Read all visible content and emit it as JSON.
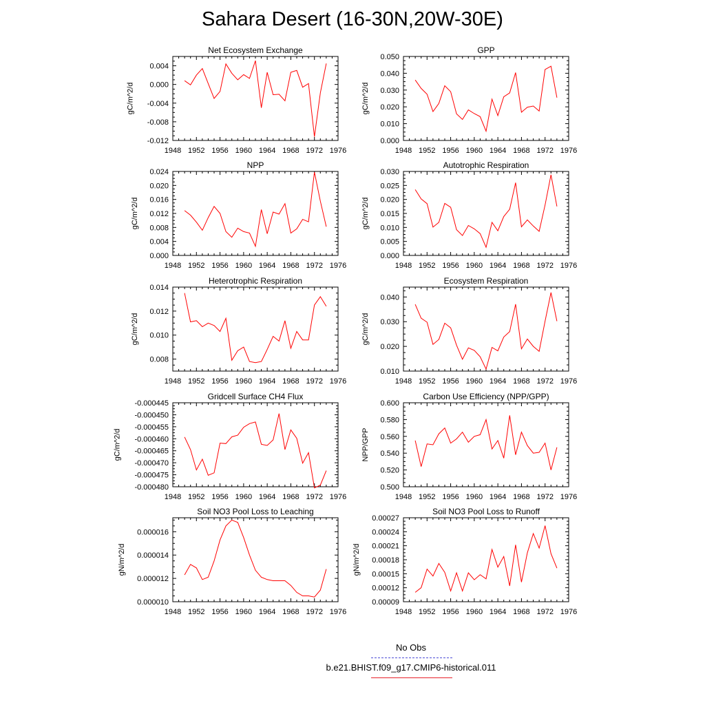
{
  "title": "Sahara Desert (16-30N,20W-30E)",
  "legend": {
    "items": [
      {
        "label": "No Obs",
        "color": "#4b4bd6",
        "dashed": true
      },
      {
        "label": "b.e21.BHIST.f09_g17.CMIP6-historical.011",
        "color": "#e8202a",
        "dashed": false
      }
    ]
  },
  "chart_data": [
    {
      "type": "line",
      "title": "Net Ecosystem Exchange",
      "ylabel": "gC/m^2/d",
      "xlim": [
        1948,
        1976
      ],
      "xticks": [
        "1948",
        "1952",
        "1956",
        "1960",
        "1964",
        "1968",
        "1972",
        "1976"
      ],
      "ylim": [
        -0.012,
        0.006
      ],
      "yticks": [
        "0.004",
        "0.000",
        "-0.004",
        "-0.008",
        "-0.012"
      ],
      "series": [
        {
          "color": "#ff0000",
          "x": [
            1950,
            1951,
            1952,
            1953,
            1954,
            1955,
            1956,
            1957,
            1958,
            1959,
            1960,
            1961,
            1962,
            1963,
            1964,
            1965,
            1966,
            1967,
            1968,
            1969,
            1970,
            1971,
            1972,
            1973,
            1974
          ],
          "y": [
            0.0008,
            -0.0001,
            0.002,
            0.0034,
            0.0002,
            -0.003,
            -0.0015,
            0.0044,
            0.0024,
            0.001,
            0.0021,
            0.0013,
            0.0051,
            -0.005,
            0.0026,
            -0.0022,
            -0.0021,
            -0.0035,
            0.0026,
            0.003,
            -0.0006,
            0.0002,
            -0.0112,
            -0.0018,
            0.0045
          ]
        }
      ]
    },
    {
      "type": "line",
      "title": "GPP",
      "ylabel": "gC/m^2/d",
      "xlim": [
        1948,
        1976
      ],
      "xticks": [
        "1948",
        "1952",
        "1956",
        "1960",
        "1964",
        "1968",
        "1972",
        "1976"
      ],
      "ylim": [
        0,
        0.05
      ],
      "yticks": [
        "0.050",
        "0.040",
        "0.030",
        "0.020",
        "0.010",
        "0.000"
      ],
      "series": [
        {
          "color": "#ff0000",
          "x": [
            1950,
            1951,
            1952,
            1953,
            1954,
            1955,
            1956,
            1957,
            1958,
            1959,
            1960,
            1961,
            1962,
            1963,
            1964,
            1965,
            1966,
            1967,
            1968,
            1969,
            1970,
            1971,
            1972,
            1973,
            1974
          ],
          "y": [
            0.036,
            0.031,
            0.0275,
            0.0172,
            0.022,
            0.0326,
            0.029,
            0.0158,
            0.0125,
            0.0182,
            0.016,
            0.0142,
            0.0055,
            0.0246,
            0.0148,
            0.026,
            0.0283,
            0.0404,
            0.0168,
            0.0198,
            0.0205,
            0.0175,
            0.0422,
            0.0442,
            0.0255
          ]
        }
      ]
    },
    {
      "type": "line",
      "title": "NPP",
      "ylabel": "gC/m^2/d",
      "xlim": [
        1948,
        1976
      ],
      "xticks": [
        "1948",
        "1952",
        "1956",
        "1960",
        "1964",
        "1968",
        "1972",
        "1976"
      ],
      "ylim": [
        0,
        0.024
      ],
      "yticks": [
        "0.024",
        "0.020",
        "0.016",
        "0.012",
        "0.008",
        "0.004",
        "0.000"
      ],
      "series": [
        {
          "color": "#ff0000",
          "x": [
            1950,
            1951,
            1952,
            1953,
            1954,
            1955,
            1956,
            1957,
            1958,
            1959,
            1960,
            1961,
            1962,
            1963,
            1964,
            1965,
            1966,
            1967,
            1968,
            1969,
            1970,
            1971,
            1972,
            1973,
            1974
          ],
          "y": [
            0.0128,
            0.0115,
            0.0095,
            0.0072,
            0.0108,
            0.014,
            0.012,
            0.0068,
            0.0052,
            0.0078,
            0.0068,
            0.0064,
            0.0026,
            0.0131,
            0.0062,
            0.0124,
            0.0118,
            0.0148,
            0.0064,
            0.0076,
            0.0103,
            0.0096,
            0.0238,
            0.0155,
            0.0082
          ]
        }
      ]
    },
    {
      "type": "line",
      "title": "Autotrophic Respiration",
      "ylabel": "gC/m^2/d",
      "xlim": [
        1948,
        1976
      ],
      "xticks": [
        "1948",
        "1952",
        "1956",
        "1960",
        "1964",
        "1968",
        "1972",
        "1976"
      ],
      "ylim": [
        0,
        0.03
      ],
      "yticks": [
        "0.030",
        "0.025",
        "0.020",
        "0.015",
        "0.010",
        "0.005",
        "0.000"
      ],
      "series": [
        {
          "color": "#ff0000",
          "x": [
            1950,
            1951,
            1952,
            1953,
            1954,
            1955,
            1956,
            1957,
            1958,
            1959,
            1960,
            1961,
            1962,
            1963,
            1964,
            1965,
            1966,
            1967,
            1968,
            1969,
            1970,
            1971,
            1972,
            1973,
            1974
          ],
          "y": [
            0.0235,
            0.0202,
            0.0185,
            0.0101,
            0.0118,
            0.0186,
            0.0172,
            0.0092,
            0.0071,
            0.0107,
            0.0095,
            0.0078,
            0.0029,
            0.0118,
            0.0088,
            0.0139,
            0.0165,
            0.026,
            0.0102,
            0.0127,
            0.0105,
            0.0086,
            0.018,
            0.0288,
            0.0175
          ]
        }
      ]
    },
    {
      "type": "line",
      "title": "Heterotrophic Respiration",
      "ylabel": "gC/m^2/d",
      "xlim": [
        1948,
        1976
      ],
      "xticks": [
        "1948",
        "1952",
        "1956",
        "1960",
        "1964",
        "1968",
        "1972",
        "1976"
      ],
      "ylim": [
        0.007,
        0.014
      ],
      "yticks": [
        "0.014",
        "0.012",
        "0.010",
        "0.008"
      ],
      "series": [
        {
          "color": "#ff0000",
          "x": [
            1950,
            1951,
            1952,
            1953,
            1954,
            1955,
            1956,
            1957,
            1958,
            1959,
            1960,
            1961,
            1962,
            1963,
            1964,
            1965,
            1966,
            1967,
            1968,
            1969,
            1970,
            1971,
            1972,
            1973,
            1974
          ],
          "y": [
            0.0135,
            0.0111,
            0.0112,
            0.0107,
            0.011,
            0.0108,
            0.0103,
            0.0114,
            0.0079,
            0.0087,
            0.009,
            0.0078,
            0.0077,
            0.0078,
            0.0088,
            0.0099,
            0.0095,
            0.0112,
            0.0089,
            0.0103,
            0.0096,
            0.0096,
            0.0125,
            0.0132,
            0.0124
          ]
        }
      ]
    },
    {
      "type": "line",
      "title": "Ecosystem Respiration",
      "ylabel": "gC/m^2/d",
      "xlim": [
        1948,
        1976
      ],
      "xticks": [
        "1948",
        "1952",
        "1956",
        "1960",
        "1964",
        "1968",
        "1972",
        "1976"
      ],
      "ylim": [
        0.01,
        0.044
      ],
      "yticks": [
        "0.040",
        "0.030",
        "0.020",
        "0.010"
      ],
      "series": [
        {
          "color": "#ff0000",
          "x": [
            1950,
            1951,
            1952,
            1953,
            1954,
            1955,
            1956,
            1957,
            1958,
            1959,
            1960,
            1961,
            1962,
            1963,
            1964,
            1965,
            1966,
            1967,
            1968,
            1969,
            1970,
            1971,
            1972,
            1973,
            1974
          ],
          "y": [
            0.037,
            0.0314,
            0.0298,
            0.0208,
            0.0228,
            0.0294,
            0.0275,
            0.0205,
            0.0148,
            0.0194,
            0.0184,
            0.0158,
            0.0108,
            0.0196,
            0.0182,
            0.0238,
            0.026,
            0.0371,
            0.019,
            0.023,
            0.02,
            0.018,
            0.0302,
            0.0418,
            0.0302
          ]
        }
      ]
    },
    {
      "type": "line",
      "title": "Gridcell Surface CH4 Flux",
      "ylabel": "gC/m^2/d",
      "xlim": [
        1948,
        1976
      ],
      "xticks": [
        "1948",
        "1952",
        "1956",
        "1960",
        "1964",
        "1968",
        "1972",
        "1976"
      ],
      "ylim": [
        -0.00048,
        -0.000445
      ],
      "yticks": [
        "-0.000445",
        "-0.000450",
        "-0.000455",
        "-0.000460",
        "-0.000465",
        "-0.000470",
        "-0.000475",
        "-0.000480"
      ],
      "series": [
        {
          "color": "#ff0000",
          "x": [
            1950,
            1951,
            1952,
            1953,
            1954,
            1955,
            1956,
            1957,
            1958,
            1959,
            1960,
            1961,
            1962,
            1963,
            1964,
            1965,
            1966,
            1967,
            1968,
            1969,
            1970,
            1971,
            1972,
            1973,
            1974
          ],
          "y": [
            -0.0004593,
            -0.0004645,
            -0.000473,
            -0.0004685,
            -0.0004752,
            -0.0004742,
            -0.0004618,
            -0.000462,
            -0.0004592,
            -0.0004585,
            -0.0004552,
            -0.0004537,
            -0.000453,
            -0.0004623,
            -0.0004628,
            -0.0004605,
            -0.0004495,
            -0.0004645,
            -0.0004563,
            -0.0004598,
            -0.0004702,
            -0.0004658,
            -0.0004805,
            -0.0004793,
            -0.0004733
          ]
        }
      ]
    },
    {
      "type": "line",
      "title": "Carbon Use Efficiency (NPP/GPP)",
      "ylabel": "NPP/GPP",
      "xlim": [
        1948,
        1976
      ],
      "xticks": [
        "1948",
        "1952",
        "1956",
        "1960",
        "1964",
        "1968",
        "1972",
        "1976"
      ],
      "ylim": [
        0.5,
        0.6
      ],
      "yticks": [
        "0.600",
        "0.580",
        "0.560",
        "0.540",
        "0.520",
        "0.500"
      ],
      "series": [
        {
          "color": "#ff0000",
          "x": [
            1950,
            1951,
            1952,
            1953,
            1954,
            1955,
            1956,
            1957,
            1958,
            1959,
            1960,
            1961,
            1962,
            1963,
            1964,
            1965,
            1966,
            1967,
            1968,
            1969,
            1970,
            1971,
            1972,
            1973,
            1974
          ],
          "y": [
            0.555,
            0.524,
            0.551,
            0.55,
            0.563,
            0.57,
            0.552,
            0.557,
            0.565,
            0.553,
            0.56,
            0.562,
            0.58,
            0.545,
            0.555,
            0.534,
            0.585,
            0.538,
            0.565,
            0.549,
            0.54,
            0.541,
            0.552,
            0.52,
            0.547
          ]
        }
      ]
    },
    {
      "type": "line",
      "title": "Soil NO3 Pool Loss to Leaching",
      "ylabel": "gN/m^2/d",
      "xlim": [
        1948,
        1976
      ],
      "xticks": [
        "1948",
        "1952",
        "1956",
        "1960",
        "1964",
        "1968",
        "1972",
        "1976"
      ],
      "ylim": [
        1e-05,
        1.72e-05
      ],
      "yticks": [
        "0.000016",
        "0.000014",
        "0.000012",
        "0.000010"
      ],
      "series": [
        {
          "color": "#ff0000",
          "x": [
            1950,
            1951,
            1952,
            1953,
            1954,
            1955,
            1956,
            1957,
            1958,
            1959,
            1960,
            1961,
            1962,
            1963,
            1964,
            1965,
            1966,
            1967,
            1968,
            1969,
            1970,
            1971,
            1972,
            1973,
            1974
          ],
          "y": [
            1.23e-05,
            1.32e-05,
            1.29e-05,
            1.19e-05,
            1.21e-05,
            1.35e-05,
            1.53e-05,
            1.65e-05,
            1.7e-05,
            1.68e-05,
            1.55e-05,
            1.4e-05,
            1.27e-05,
            1.21e-05,
            1.19e-05,
            1.18e-05,
            1.18e-05,
            1.18e-05,
            1.14e-05,
            1.08e-05,
            1.05e-05,
            1.05e-05,
            1.04e-05,
            1.1e-05,
            1.28e-05
          ]
        }
      ]
    },
    {
      "type": "line",
      "title": "Soil NO3 Pool Loss to Runoff",
      "ylabel": "gN/m^2/d",
      "xlim": [
        1948,
        1976
      ],
      "xticks": [
        "1948",
        "1952",
        "1956",
        "1960",
        "1964",
        "1968",
        "1972",
        "1976"
      ],
      "ylim": [
        9e-05,
        0.00027
      ],
      "yticks": [
        "0.00027",
        "0.00024",
        "0.00021",
        "0.00018",
        "0.00015",
        "0.00012",
        "0.00009"
      ],
      "series": [
        {
          "color": "#ff0000",
          "x": [
            1950,
            1951,
            1952,
            1953,
            1954,
            1955,
            1956,
            1957,
            1958,
            1959,
            1960,
            1961,
            1962,
            1963,
            1964,
            1965,
            1966,
            1967,
            1968,
            1969,
            1970,
            1971,
            1972,
            1973,
            1974
          ],
          "y": [
            0.00011,
            0.00012,
            0.00016,
            0.000145,
            0.000172,
            0.000153,
            0.000113,
            0.000152,
            0.000113,
            0.000152,
            0.000137,
            0.000148,
            0.000139,
            0.000202,
            0.000164,
            0.000187,
            0.000124,
            0.000212,
            0.000132,
            0.000195,
            0.000236,
            0.000205,
            0.000253,
            0.000193,
            0.000162
          ]
        }
      ]
    }
  ]
}
